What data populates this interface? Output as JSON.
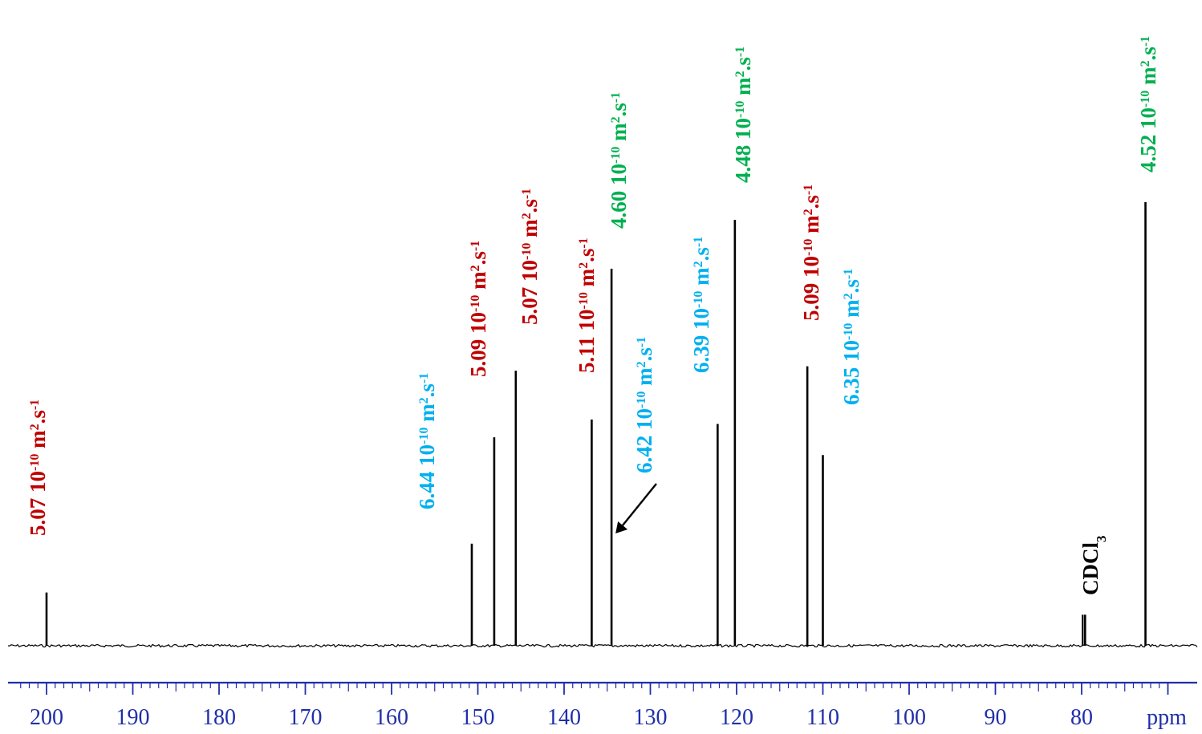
{
  "chart_data": {
    "type": "line",
    "title": "",
    "xlabel": "ppm",
    "ylabel": "",
    "x_reversed": true,
    "xlim": [
      203,
      70
    ],
    "x_ticks": [
      200,
      190,
      180,
      170,
      160,
      150,
      140,
      130,
      120,
      110,
      100,
      90,
      80
    ],
    "grid": false,
    "legend": "none",
    "colors": {
      "spectrum": "#000000",
      "axis": "#1f2fa8",
      "red_group": "#c00000",
      "blue_group": "#00b0f0",
      "green_group": "#00b050",
      "solvent": "#000000"
    },
    "peaks": [
      {
        "ppm": 200.0,
        "height": 0.12
      },
      {
        "ppm": 150.7,
        "height": 0.23
      },
      {
        "ppm": 148.1,
        "height": 0.47
      },
      {
        "ppm": 145.6,
        "height": 0.62
      },
      {
        "ppm": 136.8,
        "height": 0.51
      },
      {
        "ppm": 134.5,
        "height": 0.85
      },
      {
        "ppm": 122.2,
        "height": 0.5
      },
      {
        "ppm": 120.2,
        "height": 0.96
      },
      {
        "ppm": 111.8,
        "height": 0.63
      },
      {
        "ppm": 110.0,
        "height": 0.43
      },
      {
        "ppm": 79.6,
        "height": 0.07
      },
      {
        "ppm": 72.6,
        "height": 1.0
      }
    ],
    "annotations": [
      {
        "ppm": 200.0,
        "value": "5.07",
        "group": "red"
      },
      {
        "ppm": 150.7,
        "value": "6.44",
        "group": "blue"
      },
      {
        "ppm": 148.1,
        "value": "5.09",
        "group": "red"
      },
      {
        "ppm": 145.6,
        "value": "5.07",
        "group": "red"
      },
      {
        "ppm": 136.8,
        "value": "5.11",
        "group": "red"
      },
      {
        "ppm": 134.5,
        "value": "4.60",
        "group": "green"
      },
      {
        "ppm": 134.5,
        "value": "6.42",
        "group": "blue",
        "arrow": true
      },
      {
        "ppm": 122.2,
        "value": "6.39",
        "group": "blue"
      },
      {
        "ppm": 120.2,
        "value": "4.48",
        "group": "green"
      },
      {
        "ppm": 111.8,
        "value": "5.09",
        "group": "red"
      },
      {
        "ppm": 110.0,
        "value": "6.35",
        "group": "blue"
      },
      {
        "ppm": 72.6,
        "value": "4.52",
        "group": "green"
      }
    ],
    "unit_text": {
      "mid": "10",
      "exp": "-10",
      "m": " m",
      "m_exp": "2",
      "s": ".s",
      "s_exp": "-1"
    },
    "solvent_label": {
      "ppm": 79.6,
      "text": "CDCl",
      "sub": "3"
    }
  }
}
